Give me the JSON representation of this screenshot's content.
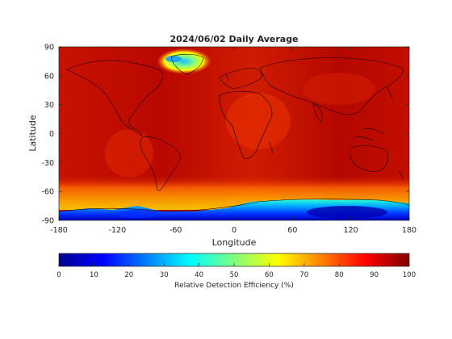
{
  "chart_data": {
    "type": "heatmap",
    "title": "2024/06/02 Daily Average",
    "xlabel": "Longitude",
    "ylabel": "Latitude",
    "xlim": [
      -180,
      180
    ],
    "ylim": [
      -90,
      90
    ],
    "xticks": [
      -180,
      -120,
      -60,
      0,
      60,
      120,
      180
    ],
    "yticks": [
      90,
      60,
      30,
      0,
      -30,
      -60,
      -90
    ],
    "grid": false,
    "colormap": "jet",
    "colorbar": {
      "label": "Relative Detection Efficiency (%)",
      "range": [
        0,
        100
      ],
      "ticks": [
        0,
        10,
        20,
        30,
        40,
        50,
        60,
        70,
        80,
        90,
        100
      ],
      "orientation": "horizontal",
      "placement": "bottom"
    },
    "value_summary": {
      "background_mid_latitudes": 92,
      "arctic_greenland_area_min": 45,
      "antarctica_min": 8,
      "southern_ocean_band": 75
    }
  }
}
